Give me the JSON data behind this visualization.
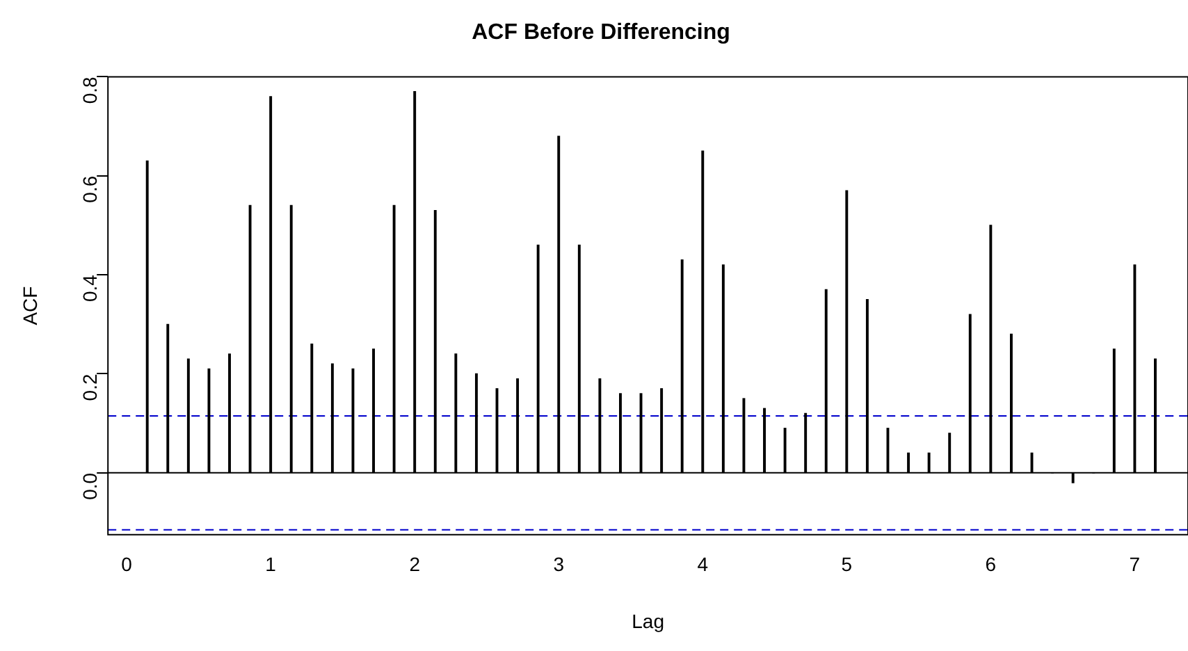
{
  "chart_data": {
    "type": "bar",
    "title": "ACF Before Differencing",
    "xlabel": "Lag",
    "ylabel": "ACF",
    "x": [
      0.1429,
      0.2857,
      0.4286,
      0.5714,
      0.7143,
      0.8571,
      1,
      1.1429,
      1.2857,
      1.4286,
      1.5714,
      1.7143,
      1.8571,
      2,
      2.1429,
      2.2857,
      2.4286,
      2.5714,
      2.7143,
      2.8571,
      3,
      3.1429,
      3.2857,
      3.4286,
      3.5714,
      3.7143,
      3.8571,
      4,
      4.1429,
      4.2857,
      4.4286,
      4.5714,
      4.7143,
      4.8571,
      5,
      5.1429,
      5.2857,
      5.4286,
      5.5714,
      5.7143,
      5.8571,
      6,
      6.1429,
      6.2857,
      6.4286,
      6.5714,
      6.7143,
      6.8571,
      7,
      7.1429
    ],
    "values": [
      0.63,
      0.3,
      0.23,
      0.21,
      0.24,
      0.54,
      0.76,
      0.54,
      0.26,
      0.22,
      0.21,
      0.25,
      0.54,
      0.77,
      0.53,
      0.24,
      0.2,
      0.17,
      0.19,
      0.46,
      0.68,
      0.46,
      0.19,
      0.16,
      0.16,
      0.17,
      0.43,
      0.65,
      0.42,
      0.15,
      0.13,
      0.09,
      0.12,
      0.37,
      0.57,
      0.35,
      0.09,
      0.04,
      0.04,
      0.08,
      0.32,
      0.5,
      0.28,
      0.04,
      0.0,
      -0.02,
      0.0,
      0.25,
      0.42,
      0.23
    ],
    "color": "#000000",
    "xlim": [
      -0.13,
      7.37
    ],
    "xticks": [
      0,
      1,
      2,
      3,
      4,
      5,
      6,
      7
    ],
    "ylim": [
      -0.125,
      0.8
    ],
    "yticks": [
      {
        "value": 0,
        "label": "0.0"
      },
      {
        "value": 0.2,
        "label": "0.2"
      },
      {
        "value": 0.4,
        "label": "0.4"
      },
      {
        "value": 0.6,
        "label": "0.6"
      },
      {
        "value": 0.8,
        "label": "0.8"
      }
    ],
    "ref_lines": [
      {
        "axis": "y",
        "value": 0,
        "color": "#000000",
        "line_style": "solid"
      },
      {
        "axis": "y",
        "value": 0.115,
        "color": "#0000cc",
        "line_style": "dashed"
      },
      {
        "axis": "y",
        "value": -0.115,
        "color": "#0000cc",
        "line_style": "dashed"
      }
    ],
    "grid": false,
    "legend": false
  }
}
